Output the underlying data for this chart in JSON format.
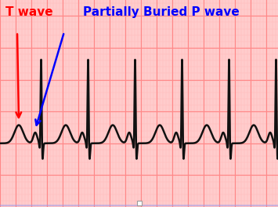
{
  "background_color": "#FFCCCC",
  "grid_major_color": "#FF8888",
  "grid_minor_color": "#FFBBBB",
  "ecg_color": "#111111",
  "ecg_linewidth": 1.8,
  "fig_width": 3.55,
  "fig_height": 2.64,
  "dpi": 100,
  "t_wave_label": "T wave",
  "t_wave_label_color": "red",
  "p_wave_label": "Partially Buried P wave",
  "p_wave_label_color": "blue",
  "annotation_fontsize": 11,
  "xlim": [
    0,
    3.55
  ],
  "ylim": [
    -0.45,
    0.85
  ]
}
